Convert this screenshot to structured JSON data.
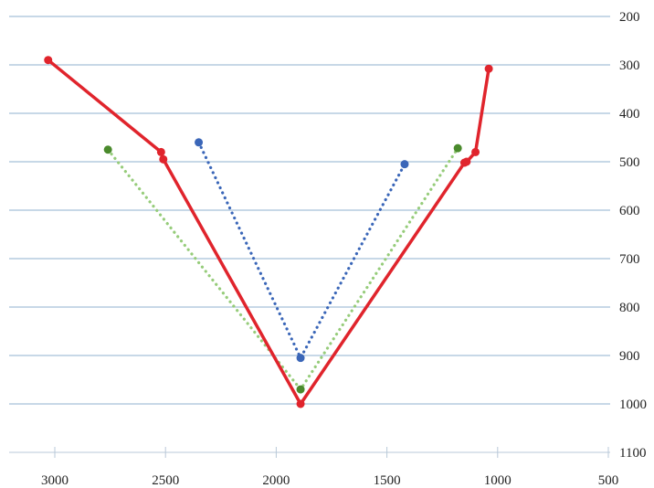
{
  "chart_data": {
    "type": "line",
    "title": "",
    "xlabel": "",
    "ylabel": "",
    "xlim": [
      3200,
      500
    ],
    "ylim": [
      1100,
      200
    ],
    "x_reversed": true,
    "y_reversed": true,
    "grid": "horizontal",
    "legend": "none",
    "x_ticks": [
      3000,
      2500,
      2000,
      1500,
      1000,
      500
    ],
    "x_tick_labels": [
      "3000",
      "2500",
      "2000",
      "1500",
      "1000",
      "500"
    ],
    "y_ticks": [
      200,
      300,
      400,
      500,
      600,
      700,
      800,
      900,
      1000,
      1100
    ],
    "y_tick_labels": [
      "200",
      "300",
      "400",
      "500",
      "600",
      "700",
      "800",
      "900",
      "1000",
      "1100"
    ],
    "colors": {
      "grid": "#8fb0cf",
      "axis": "#b8c8d8"
    },
    "series": [
      {
        "color": "#3a66b8",
        "style": "dotted",
        "points": [
          {
            "x": 2350,
            "y": 460
          },
          {
            "x": 1890,
            "y": 905
          },
          {
            "x": 1420,
            "y": 505
          }
        ]
      },
      {
        "color": "#96cc7a",
        "marker_color": "#4a8a2c",
        "style": "dotted",
        "points": [
          {
            "x": 2760,
            "y": 475
          },
          {
            "x": 1890,
            "y": 970
          },
          {
            "x": 1180,
            "y": 472
          }
        ]
      },
      {
        "color": "#e0242c",
        "style": "solid",
        "points": [
          {
            "x": 3030,
            "y": 290
          },
          {
            "x": 2520,
            "y": 480
          },
          {
            "x": 2510,
            "y": 495
          },
          {
            "x": 1890,
            "y": 1000
          },
          {
            "x": 1150,
            "y": 502
          },
          {
            "x": 1140,
            "y": 500
          },
          {
            "x": 1100,
            "y": 480
          },
          {
            "x": 1040,
            "y": 308
          }
        ]
      }
    ]
  }
}
